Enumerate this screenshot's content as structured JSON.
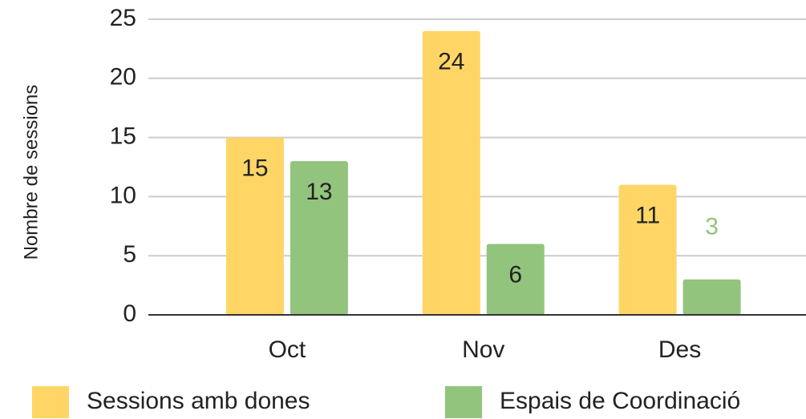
{
  "chart_data": {
    "type": "bar",
    "y_label": "Nombre de sessions",
    "categories": [
      "Oct",
      "Nov",
      "Des"
    ],
    "series": [
      {
        "name": "Sessions amb dones",
        "color": "#ffd666",
        "values": [
          15,
          24,
          11
        ]
      },
      {
        "name": "Espais de Coordinació",
        "color": "#93c47d",
        "values": [
          13,
          6,
          3
        ]
      }
    ],
    "ylim": [
      0,
      25
    ],
    "yticks": [
      0,
      5,
      10,
      15,
      20,
      25
    ],
    "grid": true,
    "legend": "bottom"
  }
}
